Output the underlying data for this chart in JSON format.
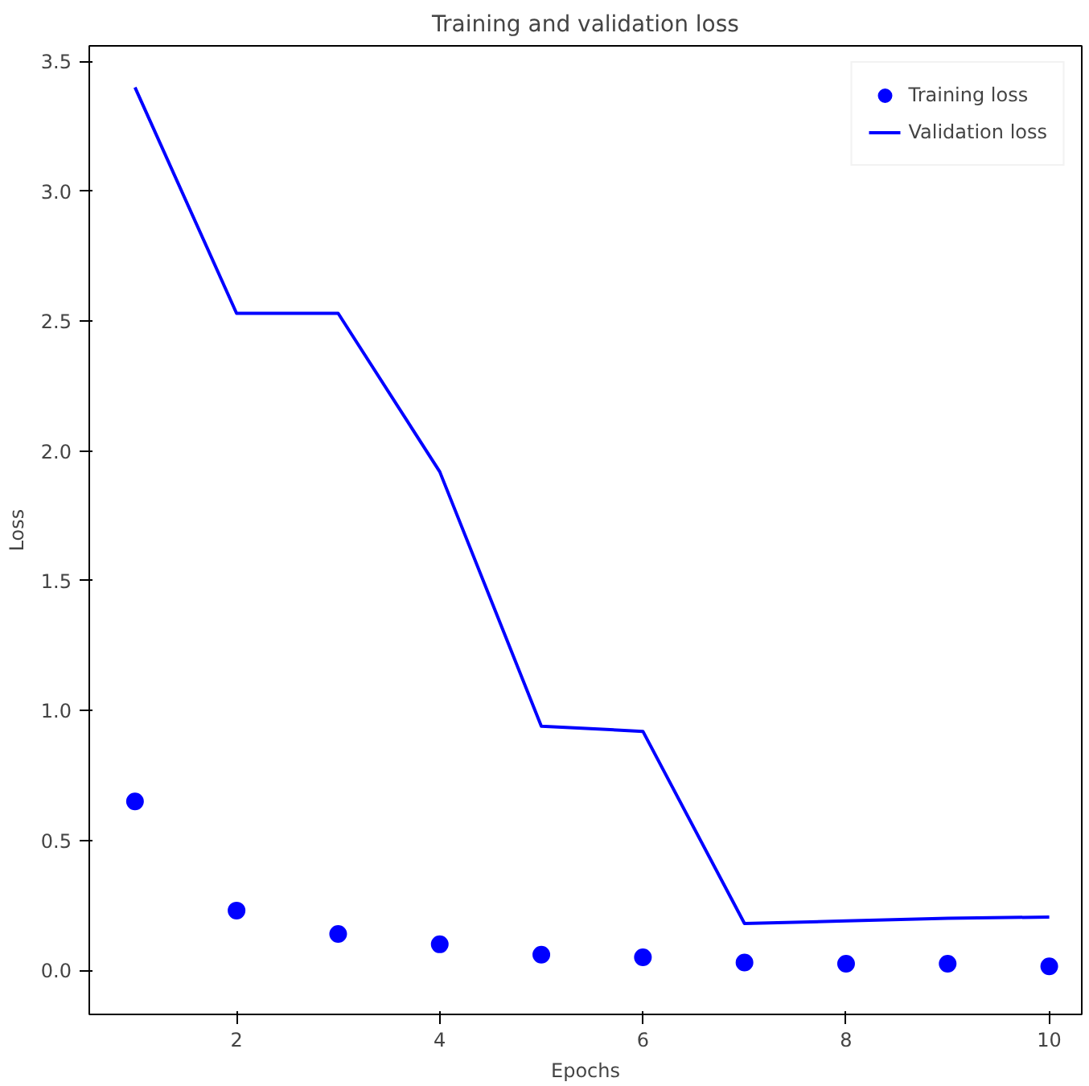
{
  "chart_data": {
    "type": "line",
    "title": "Training and validation loss",
    "xlabel": "Epochs",
    "ylabel": "Loss",
    "x": [
      1,
      2,
      3,
      4,
      5,
      6,
      7,
      8,
      9,
      10
    ],
    "series": [
      {
        "name": "Training loss",
        "type": "scatter",
        "marker": "circle",
        "color": "#0000ff",
        "values": [
          0.65,
          0.23,
          0.14,
          0.1,
          0.06,
          0.05,
          0.03,
          0.025,
          0.025,
          0.015
        ]
      },
      {
        "name": "Validation loss",
        "color": "#0000ff",
        "values": [
          3.4,
          2.53,
          2.53,
          1.92,
          0.94,
          0.92,
          0.18,
          0.19,
          0.2,
          0.205
        ]
      }
    ],
    "xlim": [
      0.55,
      10.32
    ],
    "ylim": [
      -0.17,
      3.56
    ],
    "xticks": [
      2,
      4,
      6,
      8,
      10
    ],
    "yticks": [
      {
        "value": 0,
        "label": "0.0"
      },
      {
        "value": 0.5,
        "label": "0.5"
      },
      {
        "value": 1,
        "label": "1.0"
      },
      {
        "value": 1.5,
        "label": "1.5"
      },
      {
        "value": 2,
        "label": "2.0"
      },
      {
        "value": 2.5,
        "label": "2.5"
      },
      {
        "value": 3,
        "label": "3.0"
      },
      {
        "value": 3.5,
        "label": "3.5"
      }
    ],
    "grid": false,
    "legend": "top right"
  }
}
